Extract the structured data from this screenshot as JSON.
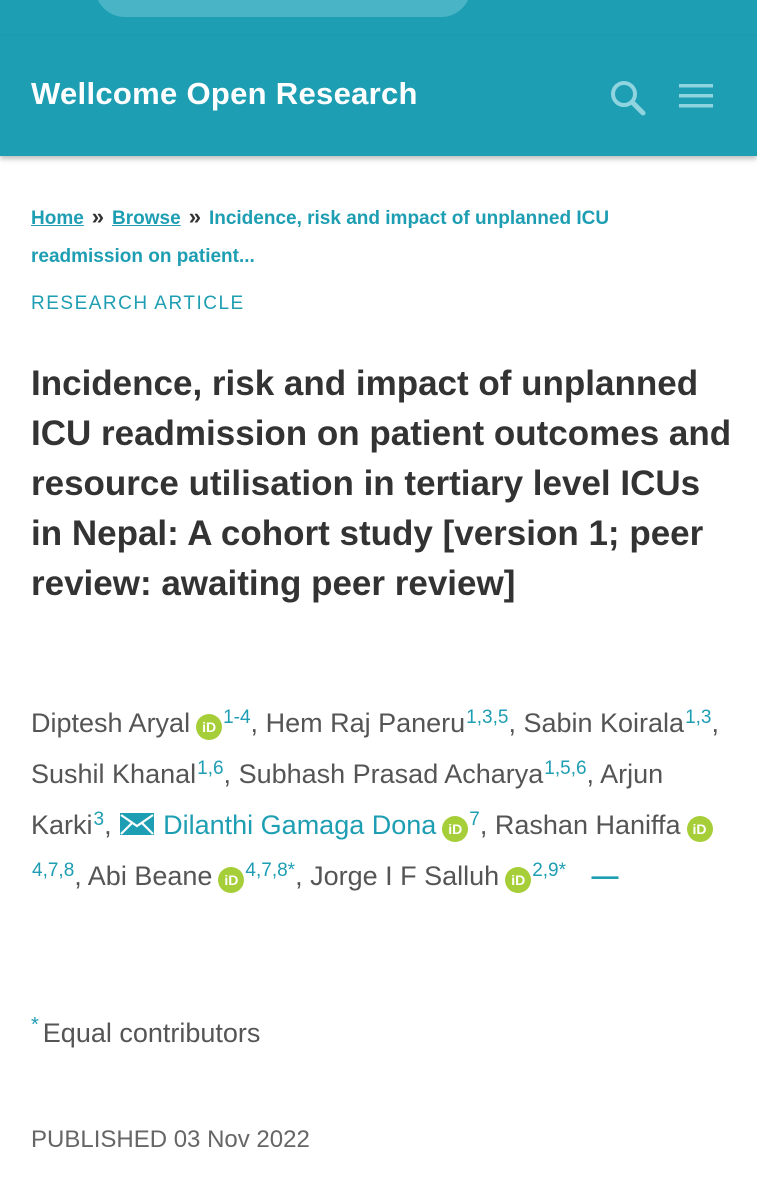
{
  "header": {
    "brand": "Wellcome Open Research",
    "brand_color": "#1e9eb3",
    "search_icon": "search-icon",
    "menu_icon": "hamburger-menu-icon"
  },
  "breadcrumb": {
    "home": "Home",
    "browse": "Browse",
    "separator": "»",
    "current": "Incidence, risk and impact of unplanned ICU readmission on patient..."
  },
  "article": {
    "type": "RESEARCH ARTICLE",
    "title": "Incidence, risk and impact of unplanned ICU readmission on patient outcomes and resource utilisation in tertiary level ICUs in Nepal: A cohort study [version 1; peer review: awaiting peer review]",
    "authors": [
      {
        "name": "Diptesh Aryal",
        "orcid": true,
        "affil": "1-4",
        "sep": ", "
      },
      {
        "name": "Hem Raj Paneru",
        "orcid": false,
        "affil": "1,3,5",
        "sep": ", "
      },
      {
        "name": "Sabin Koirala",
        "orcid": false,
        "affil": "1,3",
        "sep": ", "
      },
      {
        "name": "Sushil Khanal",
        "orcid": false,
        "affil": "1,6",
        "sep": ", "
      },
      {
        "name": "Subhash Prasad Acharya",
        "orcid": false,
        "affil": "1,5,6",
        "sep": ", "
      },
      {
        "name": "Arjun Karki",
        "orcid": false,
        "affil": "3",
        "sep": ", "
      },
      {
        "name": "Dilanthi Gamaga Dona",
        "orcid": true,
        "affil": "7",
        "sep": ", ",
        "corresponding": true
      },
      {
        "name": "Rashan Haniffa",
        "orcid": true,
        "affil": "4,7,8",
        "sep": ", "
      },
      {
        "name": "Abi Beane",
        "orcid": true,
        "affil": "4,7,8*",
        "sep": ", "
      },
      {
        "name": "Jorge I F Salluh",
        "orcid": true,
        "affil": "2,9*",
        "sep": ""
      }
    ],
    "orcid_label": "iD",
    "collapse_label": "—",
    "footnote_mark": "*",
    "footnote_text": "Equal contributors",
    "published": "PUBLISHED 03 Nov 2022"
  }
}
